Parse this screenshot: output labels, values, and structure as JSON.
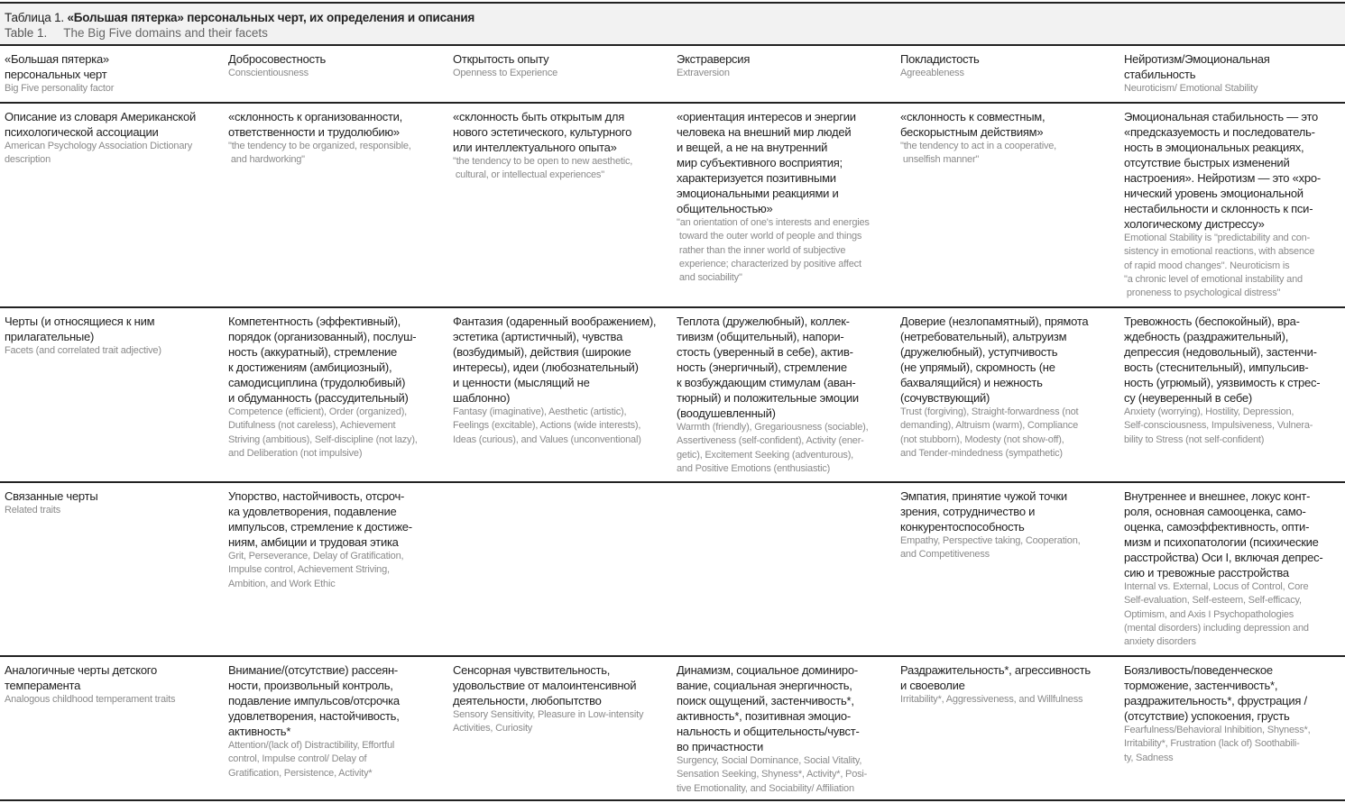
{
  "caption": {
    "ru_label": "Таблица 1. ",
    "ru_title": "«Большая пятерка» персональных черт, их определения и описания",
    "en_label": "Table 1.",
    "en_title": "The Big Five domains and their facets"
  },
  "rows": [
    {
      "cells": [
        {
          "ru": "«Большая пятерка»\nперсональных черт",
          "en": "Big Five personality factor"
        },
        {
          "ru": "Добросовестность",
          "en": "Conscientiousness"
        },
        {
          "ru": "Открытость опыту",
          "en": "Openness to Experience"
        },
        {
          "ru": "Экстраверсия",
          "en": "Extraversion"
        },
        {
          "ru": "Покладистость",
          "en": "Agreeableness"
        },
        {
          "ru": "Нейротизм/Эмоциональная\nстабильность",
          "en": "Neuroticism/ Emotional Stability"
        }
      ]
    },
    {
      "cells": [
        {
          "ru": "Описание из словаря Американской\nпсихологической ассоциации",
          "en": "American Psychology Association Dictionary\ndescription"
        },
        {
          "ru": "«склонность к организованности,\nответственности и трудолюбию»",
          "en": "\"the tendency to be organized, responsible,\n and hardworking\""
        },
        {
          "ru": "«склонность быть открытым для\nнового эстетического, культурного\nили интеллектуального опыта»",
          "en": "\"the tendency to be open to new aesthetic,\n cultural, or intellectual experiences\""
        },
        {
          "ru": "«ориентация интересов и энергии\nчеловека на внешний мир людей\nи вещей, а не на внутренний\nмир субъективного восприятия;\nхарактеризуется позитивными\nэмоциональными реакциями и\nобщительностью»",
          "en": "\"an orientation of one's interests and energies\n toward the outer world of people and things\n rather than the inner world of subjective\n experience; characterized by positive affect\n and sociability\""
        },
        {
          "ru": "«склонность к совместным,\nбескорыстным действиям»",
          "en": "\"the tendency to act in a cooperative,\n unselfish manner\""
        },
        {
          "ru": "Эмоциональная стабильность — это\n«предсказуемость и последователь-\nность в эмоциональных реакциях,\nотсутствие быстрых изменений\nнастроения». Нейротизм — это «хро-\nнический уровень эмоциональной\nнестабильности и склонность к пси-\nхологическому дистрессу»",
          "en": "Emotional Stability is \"predictability and con-\nsistency in emotional reactions, with absence\nof rapid mood changes\". Neuroticism is\n\"a chronic level of emotional instability and\n proneness to psychological distress\""
        }
      ]
    },
    {
      "cells": [
        {
          "ru": "Черты (и относящиеся к ним\nприлагательные)",
          "en": "Facets (and correlated trait adjective)"
        },
        {
          "ru": "Компетентность (эффективный),\nпорядок (организованный), послуш-\nность (аккуратный), стремление\nк достижениям (амбициозный),\nсамодисциплина (трудолюбивый)\nи обдуманность (рассудительный)",
          "en": "Competence (efficient), Order (organized),\nDutifulness (not careless), Achievement\nStriving (ambitious), Self-discipline (not lazy),\nand Deliberation (not impulsive)"
        },
        {
          "ru": "Фантазия (одаренный воображением),\nэстетика (артистичный), чувства\n(возбудимый), действия (широкие\nинтересы), идеи (любознательный)\nи ценности (мыслящий не\nшаблонно)",
          "en": "Fantasy (imaginative), Aesthetic (artistic),\nFeelings (excitable), Actions (wide interests),\nIdeas (curious), and Values (unconventional)"
        },
        {
          "ru": "Теплота (дружелюбный), коллек-\nтивизм (общительный), напори-\nстость (уверенный в себе), актив-\nность (энергичный), стремление\nк возбуждающим стимулам (аван-\nтюрный) и положительные эмоции\n(воодушевленный)",
          "en": "Warmth (friendly), Gregariousness (sociable),\nAssertiveness (self-confident), Activity (ener-\ngetic), Excitement Seeking (adventurous),\nand Positive Emotions (enthusiastic)"
        },
        {
          "ru": "Доверие (незлопамятный), прямота\n(нетребовательный), альтруизм\n(дружелюбный), уступчивость\n(не упрямый), скромность (не\nбахвалящийся) и нежность\n(сочувствующий)",
          "en": "Trust (forgiving), Straight-forwardness (not\ndemanding), Altruism (warm), Compliance\n(not stubborn), Modesty (not show-off),\nand Tender-mindedness (sympathetic)"
        },
        {
          "ru": "Тревожность (беспокойный), вра-\nждебность (раздражительный),\nдепрессия (недовольный), застенчи-\nвость (стеснительный), импульсив-\nность (угрюмый), уязвимость к стрес-\nсу (неуверенный в себе)",
          "en": "Anxiety (worrying), Hostility, Depression,\nSelf-consciousness, Impulsiveness, Vulnera-\nbility to Stress (not self-confident)"
        }
      ]
    },
    {
      "cells": [
        {
          "ru": "Связанные черты",
          "en": "Related traits"
        },
        {
          "ru": "Упорство, настойчивость, отсроч-\nка удовлетворения, подавление\nимпульсов, стремление к достиже-\nниям, амбиции и трудовая этика",
          "en": "Grit, Perseverance, Delay of Gratification,\nImpulse control, Achievement Striving,\nAmbition, and Work Ethic"
        },
        {
          "ru": "",
          "en": ""
        },
        {
          "ru": "",
          "en": ""
        },
        {
          "ru": "Эмпатия, принятие чужой точки\nзрения, сотрудничество и\nконкурентоспособность",
          "en": "Empathy, Perspective taking, Cooperation,\nand Competitiveness"
        },
        {
          "ru": "Внутреннее и внешнее, локус конт-\nроля, основная самооценка, само-\nоценка, самоэффективность, опти-\nмизм и психопатологии (психические\nрасстройства) Оси I, включая депрес-\nсию и тревожные расстройства",
          "en": "Internal vs. External, Locus of Control, Core\nSelf-evaluation, Self-esteem, Self-efficacy,\nOptimism, and Axis I Psychopathologies\n(mental disorders) including depression and\nanxiety disorders"
        }
      ]
    },
    {
      "cells": [
        {
          "ru": "Аналогичные черты детского\nтемперамента",
          "en": "Analogous childhood temperament traits"
        },
        {
          "ru": "Внимание/(отсутствие) рассеян-\nности, произвольный контроль,\nподавление импульсов/отсрочка\nудовлетворения, настойчивость,\nактивность*",
          "en": "Attention/(lack of) Distractibility, Effortful\ncontrol, Impulse control/ Delay of\nGratification, Persistence, Activity*"
        },
        {
          "ru": "Сенсорная чувствительность,\nудовольствие от малоинтенсивной\nдеятельности, любопытство",
          "en": "Sensory Sensitivity, Pleasure in Low-intensity\nActivities, Curiosity"
        },
        {
          "ru": "Динамизм, социальное доминиро-\nвание, социальная энергичность,\nпоиск ощущений, застенчивость*,\nактивность*, позитивная эмоцио-\nнальность и общительность/чувст-\nво причастности",
          "en": "Surgency, Social Dominance, Social Vitality,\nSensation Seeking, Shyness*, Activity*, Posi-\ntive Emotionality, and Sociability/ Affiliation"
        },
        {
          "ru": "Раздражительность*, агрессивность\nи своеволие",
          "en": "Irritability*, Aggressiveness, and Willfulness"
        },
        {
          "ru": "Боязливость/поведенческое\nторможение, застенчивость*,\nраздражительность*, фрустрация /\n(отсутствие) успокоения, грусть",
          "en": "Fearfulness/Behavioral Inhibition, Shyness*,\nIrritability*, Frustration (lack of) Soothabili-\nty, Sadness"
        }
      ]
    }
  ]
}
